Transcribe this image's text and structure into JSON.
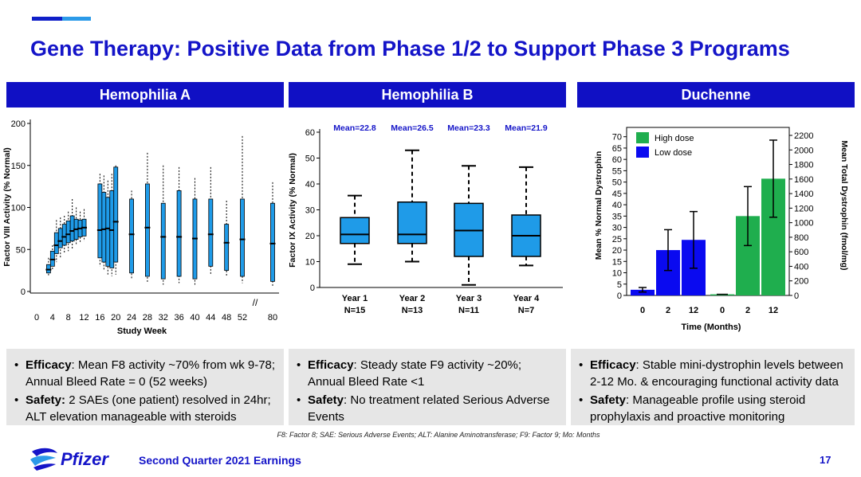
{
  "title": "Gene Therapy: Positive Data from Phase 1/2 to Support Phase 3 Programs",
  "colors": {
    "title_blue": "#1414c8",
    "header_bg": "#1010c4",
    "box_fill": "#1f9be8",
    "high_dose": "#1fae4e",
    "low_dose": "#0a0af0"
  },
  "panels": {
    "hemophilia_a": {
      "header": "Hemophilia A",
      "bullets": [
        {
          "bold": "Efficacy",
          "text": ": Mean F8 activity ~70% from wk 9-78; Annual Bleed Rate = 0 (52 weeks)"
        },
        {
          "bold": "Safety:",
          "text": " 2 SAEs (one patient) resolved in 24hr; ALT elevation manageable with steroids"
        }
      ]
    },
    "hemophilia_b": {
      "header": "Hemophilia B",
      "bullets": [
        {
          "bold": "Efficacy",
          "text": ": Steady state F9 activity ~20%; Annual Bleed Rate <1"
        },
        {
          "bold": "Safety",
          "text": ": No treatment related Serious Adverse Events"
        }
      ]
    },
    "duchenne": {
      "header": "Duchenne",
      "bullets": [
        {
          "bold": "Efficacy",
          "text": ": Stable mini-dystrophin levels between 2-12 Mo. & encouraging functional activity data"
        },
        {
          "bold": "Safety",
          "text": ": Manageable profile using steroid prophylaxis and proactive monitoring"
        }
      ]
    }
  },
  "chart_data": [
    {
      "type": "box",
      "ylabel": "Factor VIII Activity (% Normal)",
      "xlabel": "Study Week",
      "yticks": [
        0,
        50,
        100,
        150,
        200
      ],
      "xticks": [
        "0",
        "4",
        "8",
        "12",
        "16",
        "20",
        "24",
        "28",
        "32",
        "36",
        "40",
        "44",
        "48",
        "52",
        "80"
      ],
      "ylim": [
        0,
        200
      ],
      "axis_break": "52-80",
      "series": [
        {
          "x": 3,
          "low": 18,
          "q1": 22,
          "median": 26,
          "q3": 32,
          "high": 40
        },
        {
          "x": 4,
          "low": 25,
          "q1": 30,
          "median": 38,
          "q3": 48,
          "high": 55
        },
        {
          "x": 5,
          "low": 35,
          "q1": 45,
          "median": 55,
          "q3": 70,
          "high": 85
        },
        {
          "x": 6,
          "low": 40,
          "q1": 52,
          "median": 60,
          "q3": 75,
          "high": 88
        },
        {
          "x": 7,
          "low": 45,
          "q1": 55,
          "median": 65,
          "q3": 80,
          "high": 90
        },
        {
          "x": 8,
          "low": 48,
          "q1": 58,
          "median": 68,
          "q3": 84,
          "high": 95
        },
        {
          "x": 9,
          "low": 50,
          "q1": 60,
          "median": 72,
          "q3": 90,
          "high": 110
        },
        {
          "x": 10,
          "low": 55,
          "q1": 62,
          "median": 74,
          "q3": 86,
          "high": 100
        },
        {
          "x": 11,
          "low": 58,
          "q1": 65,
          "median": 75,
          "q3": 85,
          "high": 95
        },
        {
          "x": 12,
          "low": 60,
          "q1": 66,
          "median": 76,
          "q3": 86,
          "high": 98
        },
        {
          "x": 16,
          "low": 30,
          "q1": 40,
          "median": 73,
          "q3": 128,
          "high": 140
        },
        {
          "x": 17,
          "low": 25,
          "q1": 35,
          "median": 74,
          "q3": 118,
          "high": 138
        },
        {
          "x": 18,
          "low": 20,
          "q1": 30,
          "median": 75,
          "q3": 112,
          "high": 132
        },
        {
          "x": 19,
          "low": 18,
          "q1": 28,
          "median": 73,
          "q3": 120,
          "high": 140
        },
        {
          "x": 20,
          "low": 20,
          "q1": 35,
          "median": 83,
          "q3": 148,
          "high": 150
        },
        {
          "x": 24,
          "low": 15,
          "q1": 22,
          "median": 68,
          "q3": 110,
          "high": 120
        },
        {
          "x": 28,
          "low": 10,
          "q1": 18,
          "median": 76,
          "q3": 128,
          "high": 165
        },
        {
          "x": 32,
          "low": 8,
          "q1": 15,
          "median": 65,
          "q3": 105,
          "high": 150
        },
        {
          "x": 36,
          "low": 10,
          "q1": 18,
          "median": 65,
          "q3": 120,
          "high": 148
        },
        {
          "x": 40,
          "low": 8,
          "q1": 15,
          "median": 63,
          "q3": 110,
          "high": 135
        },
        {
          "x": 44,
          "low": 20,
          "q1": 30,
          "median": 68,
          "q3": 110,
          "high": 148
        },
        {
          "x": 48,
          "low": 18,
          "q1": 25,
          "median": 58,
          "q3": 80,
          "high": 108
        },
        {
          "x": 52,
          "low": 10,
          "q1": 18,
          "median": 62,
          "q3": 110,
          "high": 185
        },
        {
          "x": 80,
          "low": 5,
          "q1": 12,
          "median": 57,
          "q3": 105,
          "high": 130
        }
      ]
    },
    {
      "type": "box",
      "ylabel": "Factor IX Activity (% Normal)",
      "yticks": [
        0,
        10,
        20,
        30,
        40,
        50,
        60
      ],
      "ylim": [
        0,
        60
      ],
      "categories": [
        "Year 1",
        "Year 2",
        "Year 3",
        "Year 4"
      ],
      "n_labels": [
        "N=15",
        "N=13",
        "N=11",
        "N=7"
      ],
      "annotations": [
        "Mean=22.8",
        "Mean=26.5",
        "Mean=23.3",
        "Mean=21.9"
      ],
      "series": [
        {
          "low": 9,
          "q1": 17,
          "median": 20.5,
          "q3": 27,
          "high": 35.5
        },
        {
          "low": 10,
          "q1": 17,
          "median": 20.5,
          "q3": 33,
          "high": 53
        },
        {
          "low": 1,
          "q1": 12,
          "median": 22,
          "q3": 32.5,
          "high": 47
        },
        {
          "low": 8.5,
          "q1": 12,
          "median": 20,
          "q3": 28,
          "high": 46.5
        }
      ]
    },
    {
      "type": "bar",
      "ylabel": "Mean % Normal Dystrophin",
      "ylabel_right": "Mean Total Dystrophin (fmol/mg)",
      "xlabel": "Time (Months)",
      "yticks": [
        0,
        5,
        10,
        15,
        20,
        25,
        30,
        35,
        40,
        45,
        50,
        55,
        60,
        65,
        70
      ],
      "yticks_right": [
        0,
        200,
        400,
        600,
        800,
        1000,
        1200,
        1400,
        1600,
        1800,
        2000,
        2200
      ],
      "ylim": [
        0,
        72
      ],
      "legend": [
        "High dose",
        "Low dose"
      ],
      "groups": [
        {
          "name": "Low dose",
          "categories": [
            "0",
            "2",
            "12"
          ],
          "values": [
            2.5,
            20,
            24.5
          ],
          "err": [
            1,
            9,
            12.5
          ]
        },
        {
          "name": "High dose",
          "categories": [
            "0",
            "2",
            "12"
          ],
          "values": [
            0.5,
            35,
            51.5
          ],
          "err": [
            0,
            13,
            17
          ]
        }
      ]
    }
  ],
  "footer": {
    "note": "F8: Factor 8; SAE: Serious Adverse Events; ALT: Alanine Aminotransferase; F9: Factor 9; Mo: Months",
    "logo_text": "Pfizer",
    "earnings": "Second Quarter 2021 Earnings",
    "page": "17"
  }
}
